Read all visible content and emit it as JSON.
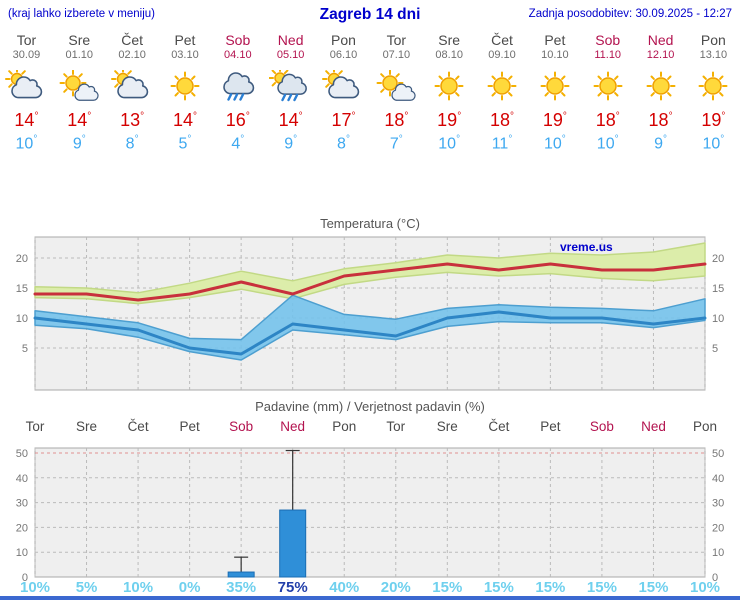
{
  "header": {
    "left_note": "(kraj lahko izberete v meniju)",
    "title": "Zagreb 14 dni",
    "updated": "Zadnja posodobitev: 30.09.2025 - 12:27"
  },
  "units": {
    "degree": "°",
    "percent": "%"
  },
  "days": [
    {
      "name": "Tor",
      "date": "30.09",
      "icon": "cloud-sun",
      "tmax": 14,
      "tmin": 10,
      "weekend": false
    },
    {
      "name": "Sre",
      "date": "01.10",
      "icon": "sun-cloud",
      "tmax": 14,
      "tmin": 9,
      "weekend": false
    },
    {
      "name": "Čet",
      "date": "02.10",
      "icon": "cloud-sun",
      "tmax": 13,
      "tmin": 8,
      "weekend": false
    },
    {
      "name": "Pet",
      "date": "03.10",
      "icon": "sunny",
      "tmax": 14,
      "tmin": 5,
      "weekend": false
    },
    {
      "name": "Sob",
      "date": "04.10",
      "icon": "rain",
      "tmax": 16,
      "tmin": 4,
      "weekend": true
    },
    {
      "name": "Ned",
      "date": "05.10",
      "icon": "rain-sun",
      "tmax": 14,
      "tmin": 9,
      "weekend": true
    },
    {
      "name": "Pon",
      "date": "06.10",
      "icon": "cloud-sun",
      "tmax": 17,
      "tmin": 8,
      "weekend": false
    },
    {
      "name": "Tor",
      "date": "07.10",
      "icon": "sun-cloud",
      "tmax": 18,
      "tmin": 7,
      "weekend": false
    },
    {
      "name": "Sre",
      "date": "08.10",
      "icon": "sunny",
      "tmax": 19,
      "tmin": 10,
      "weekend": false
    },
    {
      "name": "Čet",
      "date": "09.10",
      "icon": "sunny",
      "tmax": 18,
      "tmin": 11,
      "weekend": false
    },
    {
      "name": "Pet",
      "date": "10.10",
      "icon": "sunny",
      "tmax": 19,
      "tmin": 10,
      "weekend": false
    },
    {
      "name": "Sob",
      "date": "11.10",
      "icon": "sunny",
      "tmax": 18,
      "tmin": 10,
      "weekend": true
    },
    {
      "name": "Ned",
      "date": "12.10",
      "icon": "sunny",
      "tmax": 18,
      "tmin": 9,
      "weekend": true
    },
    {
      "name": "Pon",
      "date": "13.10",
      "icon": "sunny",
      "tmax": 19,
      "tmin": 10,
      "weekend": false
    }
  ],
  "chart_data": [
    {
      "type": "line",
      "title": "Temperatura (°C)",
      "watermark": "vreme.us",
      "categories": [
        "Tor",
        "Sre",
        "Čet",
        "Pet",
        "Sob",
        "Ned",
        "Pon",
        "Tor",
        "Sre",
        "Čet",
        "Pet",
        "Sob",
        "Ned",
        "Pon"
      ],
      "ylim": [
        -2,
        23.5
      ],
      "yticks": [
        5,
        10,
        15,
        20
      ],
      "grid": true,
      "series": [
        {
          "name": "max_hi",
          "values": [
            15.2,
            15,
            14.2,
            15.8,
            17.8,
            16.2,
            18.2,
            19.2,
            20.5,
            20,
            20.8,
            20.5,
            21,
            22.5
          ]
        },
        {
          "name": "max",
          "values": [
            14,
            14,
            13,
            14,
            16,
            14,
            17,
            18,
            19,
            18,
            19,
            18,
            18,
            19
          ]
        },
        {
          "name": "max_lo",
          "values": [
            13.4,
            13.2,
            12.4,
            13.4,
            14.8,
            13.2,
            15.6,
            16.8,
            17.6,
            17,
            17.4,
            16.6,
            16.2,
            17
          ]
        },
        {
          "name": "min_hi",
          "values": [
            11.2,
            10.2,
            9.2,
            6.6,
            6.4,
            13.8,
            10.6,
            9.8,
            11.6,
            12.2,
            11.8,
            11.6,
            11.2,
            13.2
          ]
        },
        {
          "name": "min",
          "values": [
            10,
            9,
            8,
            5,
            4,
            9,
            8,
            7,
            10,
            11,
            10,
            10,
            9,
            10
          ]
        },
        {
          "name": "min_lo",
          "values": [
            8.8,
            8.2,
            6.8,
            4.4,
            3,
            8,
            7.2,
            6.4,
            8.6,
            9.4,
            9.2,
            9.2,
            8.4,
            9.6
          ]
        }
      ],
      "colors": {
        "bg": "#efefef",
        "grid": "#bbbbbb",
        "label": "#777777",
        "title": "#555555",
        "band_max": "#dcedaa",
        "band_max_edge": "#c2d985",
        "line_max": "#c8303c",
        "band_min": "#72c2ec",
        "band_min_edge": "#4d9fd0",
        "line_min": "#2d85c5",
        "watermark": "#0000cc"
      }
    },
    {
      "type": "bar",
      "title": "Padavine (mm) / Verjetnost padavin (%)",
      "categories": [
        "Tor",
        "Sre",
        "Čet",
        "Pet",
        "Sob",
        "Ned",
        "Pon",
        "Tor",
        "Sre",
        "Čet",
        "Pet",
        "Sob",
        "Ned",
        "Pon"
      ],
      "weekend": [
        false,
        false,
        false,
        false,
        true,
        true,
        false,
        false,
        false,
        false,
        false,
        true,
        true,
        false
      ],
      "values": [
        0,
        0,
        0,
        0,
        2,
        27,
        0,
        0,
        0,
        0,
        0,
        0,
        0,
        0
      ],
      "whisker_hi": [
        null,
        null,
        null,
        null,
        8,
        51,
        null,
        null,
        null,
        null,
        null,
        null,
        null,
        null
      ],
      "prob": [
        10,
        5,
        10,
        0,
        35,
        75,
        40,
        20,
        15,
        15,
        15,
        15,
        15,
        10
      ],
      "prob_emphasis_index": 5,
      "ylim": [
        0,
        52
      ],
      "yticks": [
        0,
        10,
        20,
        30,
        40,
        50
      ],
      "colors": {
        "bg": "#efefef",
        "grid": "#bbbbbb",
        "grid50": "#e09090",
        "label": "#777777",
        "title": "#555555",
        "day": "#4a4a4a",
        "day_weekend": "#b3134f",
        "bar": "#2f8fd8",
        "bar_edge": "#1a6db3",
        "whisker": "#333333",
        "prob": "#6fd0ee",
        "prob_emphasis": "#223faa"
      }
    }
  ],
  "footer": {
    "bar_color": "#3b68d0"
  }
}
